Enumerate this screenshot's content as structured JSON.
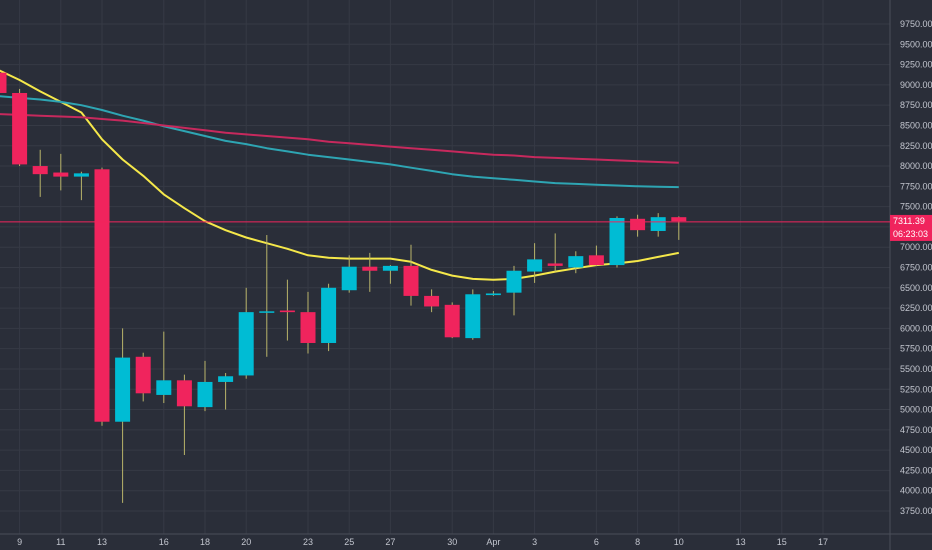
{
  "chart_data": {
    "type": "candlestick",
    "grid": true,
    "ylim": [
      3500,
      9750
    ],
    "y_ticks": [
      "9750.00",
      "9500.00",
      "9250.00",
      "9000.00",
      "8750.00",
      "8500.00",
      "8250.00",
      "8000.00",
      "7750.00",
      "7500.00",
      "7250.00",
      "7000.00",
      "6750.00",
      "6500.00",
      "6250.00",
      "6000.00",
      "5750.00",
      "5500.00",
      "5250.00",
      "5000.00",
      "4750.00",
      "4500.00",
      "4250.00",
      "4000.00",
      "3750.00"
    ],
    "x_ticks": [
      {
        "label": "9",
        "bar": 1
      },
      {
        "label": "11",
        "bar": 3
      },
      {
        "label": "13",
        "bar": 5
      },
      {
        "label": "16",
        "bar": 8
      },
      {
        "label": "18",
        "bar": 10
      },
      {
        "label": "20",
        "bar": 12
      },
      {
        "label": "23",
        "bar": 15
      },
      {
        "label": "25",
        "bar": 17
      },
      {
        "label": "27",
        "bar": 19
      },
      {
        "label": "30",
        "bar": 22
      },
      {
        "label": "Apr",
        "bar": 24
      },
      {
        "label": "3",
        "bar": 26
      },
      {
        "label": "6",
        "bar": 29
      },
      {
        "label": "8",
        "bar": 31
      },
      {
        "label": "10",
        "bar": 33
      },
      {
        "label": "13",
        "bar": 36
      },
      {
        "label": "15",
        "bar": 38
      },
      {
        "label": "17",
        "bar": 40
      }
    ],
    "candles": [
      {
        "o": 9150,
        "h": 9200,
        "l": 8900,
        "c": 8900
      },
      {
        "o": 8900,
        "h": 8950,
        "l": 8000,
        "c": 8020
      },
      {
        "o": 8000,
        "h": 8200,
        "l": 7620,
        "c": 7900
      },
      {
        "o": 7920,
        "h": 8150,
        "l": 7700,
        "c": 7870
      },
      {
        "o": 7870,
        "h": 7930,
        "l": 7580,
        "c": 7910
      },
      {
        "o": 7960,
        "h": 7980,
        "l": 4800,
        "c": 4850
      },
      {
        "o": 4850,
        "h": 6000,
        "l": 3850,
        "c": 5640
      },
      {
        "o": 5650,
        "h": 5700,
        "l": 5100,
        "c": 5200
      },
      {
        "o": 5180,
        "h": 5960,
        "l": 5080,
        "c": 5360
      },
      {
        "o": 5360,
        "h": 5430,
        "l": 4440,
        "c": 5040
      },
      {
        "o": 5030,
        "h": 5600,
        "l": 4980,
        "c": 5340
      },
      {
        "o": 5340,
        "h": 5450,
        "l": 5000,
        "c": 5410
      },
      {
        "o": 5420,
        "h": 6500,
        "l": 5380,
        "c": 6200
      },
      {
        "o": 6200,
        "h": 7150,
        "l": 5650,
        "c": 6210
      },
      {
        "o": 6220,
        "h": 6600,
        "l": 5850,
        "c": 6200
      },
      {
        "o": 6200,
        "h": 6450,
        "l": 5690,
        "c": 5820
      },
      {
        "o": 5820,
        "h": 6550,
        "l": 5720,
        "c": 6500
      },
      {
        "o": 6470,
        "h": 6900,
        "l": 6440,
        "c": 6760
      },
      {
        "o": 6760,
        "h": 6930,
        "l": 6450,
        "c": 6710
      },
      {
        "o": 6710,
        "h": 6780,
        "l": 6550,
        "c": 6770
      },
      {
        "o": 6770,
        "h": 7030,
        "l": 6280,
        "c": 6400
      },
      {
        "o": 6400,
        "h": 6480,
        "l": 6200,
        "c": 6270
      },
      {
        "o": 6290,
        "h": 6320,
        "l": 5880,
        "c": 5890
      },
      {
        "o": 5880,
        "h": 6480,
        "l": 5860,
        "c": 6420
      },
      {
        "o": 6410,
        "h": 6460,
        "l": 6400,
        "c": 6430
      },
      {
        "o": 6440,
        "h": 6770,
        "l": 6160,
        "c": 6710
      },
      {
        "o": 6700,
        "h": 7050,
        "l": 6560,
        "c": 6850
      },
      {
        "o": 6800,
        "h": 7170,
        "l": 6700,
        "c": 6770
      },
      {
        "o": 6750,
        "h": 6950,
        "l": 6680,
        "c": 6890
      },
      {
        "o": 6900,
        "h": 7020,
        "l": 6770,
        "c": 6780
      },
      {
        "o": 6780,
        "h": 7380,
        "l": 6750,
        "c": 7360
      },
      {
        "o": 7350,
        "h": 7400,
        "l": 7130,
        "c": 7210
      },
      {
        "o": 7200,
        "h": 7420,
        "l": 7130,
        "c": 7370
      },
      {
        "o": 7370,
        "h": 7380,
        "l": 7090,
        "c": 7320
      }
    ],
    "series": [
      {
        "color": "#f5e84a",
        "values": [
          9180,
          9060,
          8920,
          8790,
          8660,
          8330,
          8080,
          7880,
          7650,
          7480,
          7320,
          7210,
          7120,
          7050,
          6980,
          6900,
          6870,
          6860,
          6860,
          6860,
          6820,
          6720,
          6650,
          6610,
          6600,
          6610,
          6650,
          6700,
          6740,
          6780,
          6800,
          6830,
          6880,
          6930
        ]
      },
      {
        "color": "#2ea5b3",
        "values": [
          8860,
          8840,
          8820,
          8790,
          8750,
          8690,
          8620,
          8560,
          8490,
          8430,
          8370,
          8310,
          8270,
          8220,
          8180,
          8140,
          8110,
          8080,
          8050,
          8020,
          7980,
          7940,
          7900,
          7870,
          7850,
          7830,
          7810,
          7790,
          7780,
          7770,
          7760,
          7750,
          7745,
          7740
        ]
      },
      {
        "color": "#c7295d",
        "values": [
          8640,
          8630,
          8620,
          8610,
          8600,
          8580,
          8560,
          8530,
          8500,
          8470,
          8440,
          8410,
          8390,
          8370,
          8350,
          8330,
          8300,
          8280,
          8260,
          8240,
          8220,
          8200,
          8180,
          8160,
          8140,
          8130,
          8110,
          8100,
          8090,
          8080,
          8070,
          8060,
          8050,
          8040
        ]
      }
    ],
    "current_price": "7311.39",
    "countdown": "06:23:03",
    "colors": {
      "up": "#00bcd4",
      "down": "#f0245d",
      "wick_up": "#b9b46a",
      "wick_down": "#b9b46a",
      "background": "#2a2e39",
      "grid": "#363a45"
    }
  }
}
